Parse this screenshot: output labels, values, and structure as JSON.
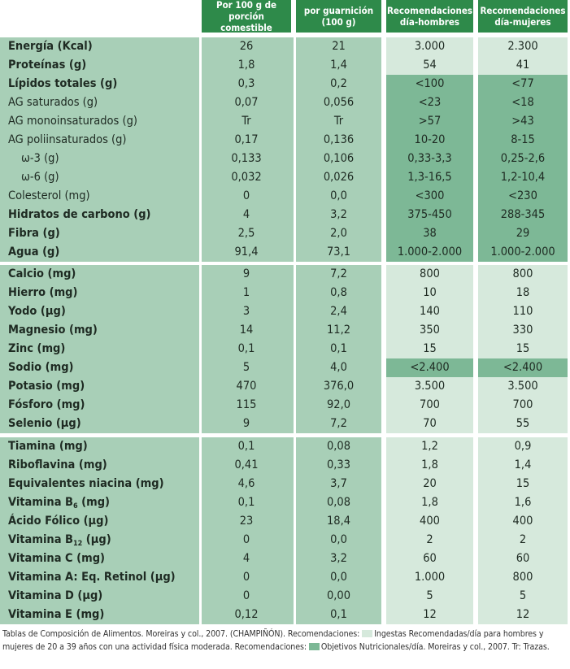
{
  "colors": {
    "header": "#2e8a4a",
    "col_main": "#a8cfb7",
    "col_light": "#d6e9dc",
    "col_dark": "#7db896",
    "divider": "#ffffff",
    "line": "#7aa88c"
  },
  "header": {
    "col1": "Por 100 g de porción comestible",
    "col2": "por guarnición (100 g)",
    "col3": "Recomendaciones día-hombres",
    "col4": "Recomendaciones día-mujeres"
  },
  "sections": [
    {
      "rows": [
        {
          "label": "Energía (Kcal)",
          "bold": true,
          "v": [
            "26",
            "21",
            "3.000",
            "2.300"
          ],
          "rec": "light"
        },
        {
          "label": "Proteínas (g)",
          "bold": true,
          "v": [
            "1,8",
            "1,4",
            "54",
            "41"
          ],
          "rec": "light"
        },
        {
          "label": "Lípidos totales (g)",
          "bold": true,
          "v": [
            "0,3",
            "0,2",
            "<100",
            "<77"
          ],
          "rec": "dark"
        },
        {
          "label": "AG saturados (g)",
          "bold": false,
          "v": [
            "0,07",
            "0,056",
            "<23",
            "<18"
          ],
          "rec": "dark"
        },
        {
          "label": "AG monoinsaturados (g)",
          "bold": false,
          "v": [
            "Tr",
            "Tr",
            ">57",
            ">43"
          ],
          "rec": "dark"
        },
        {
          "label": "AG poliinsaturados (g)",
          "bold": false,
          "v": [
            "0,17",
            "0,136",
            "10-20",
            "8-15"
          ],
          "rec": "dark"
        },
        {
          "label": "ω-3 (g)",
          "bold": false,
          "indent": true,
          "v": [
            "0,133",
            "0,106",
            "0,33-3,3",
            "0,25-2,6"
          ],
          "rec": "dark"
        },
        {
          "label": "ω-6 (g)",
          "bold": false,
          "indent": true,
          "v": [
            "0,032",
            "0,026",
            "1,3-16,5",
            "1,2-10,4"
          ],
          "rec": "dark"
        },
        {
          "label": "Colesterol (mg)",
          "bold": false,
          "v": [
            "0",
            "0,0",
            "<300",
            "<230"
          ],
          "rec": "dark"
        },
        {
          "label": "Hidratos de carbono (g)",
          "bold": true,
          "v": [
            "4",
            "3,2",
            "375-450",
            "288-345"
          ],
          "rec": "dark"
        },
        {
          "label": "Fibra (g)",
          "bold": true,
          "v": [
            "2,5",
            "2,0",
            "38",
            "29"
          ],
          "rec": "dark"
        },
        {
          "label": "Agua (g)",
          "bold": true,
          "v": [
            "91,4",
            "73,1",
            "1.000-2.000",
            "1.000-2.000"
          ],
          "rec": "dark"
        }
      ]
    },
    {
      "rows": [
        {
          "label": "Calcio (mg)",
          "bold": true,
          "v": [
            "9",
            "7,2",
            "800",
            "800"
          ],
          "rec": "light"
        },
        {
          "label": "Hierro (mg)",
          "bold": true,
          "v": [
            "1",
            "0,8",
            "10",
            "18"
          ],
          "rec": "light"
        },
        {
          "label": "Yodo (µg)",
          "bold": true,
          "v": [
            "3",
            "2,4",
            "140",
            "110"
          ],
          "rec": "light"
        },
        {
          "label": "Magnesio (mg)",
          "bold": true,
          "v": [
            "14",
            "11,2",
            "350",
            "330"
          ],
          "rec": "light"
        },
        {
          "label": "Zinc (mg)",
          "bold": true,
          "v": [
            "0,1",
            "0,1",
            "15",
            "15"
          ],
          "rec": "light"
        },
        {
          "label": "Sodio (mg)",
          "bold": true,
          "v": [
            "5",
            "4,0",
            "<2.400",
            "<2.400"
          ],
          "rec": "dark"
        },
        {
          "label": "Potasio (mg)",
          "bold": true,
          "v": [
            "470",
            "376,0",
            "3.500",
            "3.500"
          ],
          "rec": "light"
        },
        {
          "label": "Fósforo (mg)",
          "bold": true,
          "v": [
            "115",
            "92,0",
            "700",
            "700"
          ],
          "rec": "light"
        },
        {
          "label": "Selenio (µg)",
          "bold": true,
          "v": [
            "9",
            "7,2",
            "70",
            "55"
          ],
          "rec": "light"
        }
      ]
    },
    {
      "rows": [
        {
          "label": "Tiamina (mg)",
          "bold": true,
          "v": [
            "0,1",
            "0,08",
            "1,2",
            "0,9"
          ],
          "rec": "light"
        },
        {
          "label": "Riboflavina  (mg)",
          "bold": true,
          "v": [
            "0,41",
            "0,33",
            "1,8",
            "1,4"
          ],
          "rec": "light"
        },
        {
          "label": "Equivalentes niacina (mg)",
          "bold": true,
          "v": [
            "4,6",
            "3,7",
            "20",
            "15"
          ],
          "rec": "light"
        },
        {
          "label": "Vitamina B",
          "sub": "6",
          "after": " (mg)",
          "bold": true,
          "v": [
            "0,1",
            "0,08",
            "1,8",
            "1,6"
          ],
          "rec": "light"
        },
        {
          "label": "Ácido Fólico (µg)",
          "bold": true,
          "v": [
            "23",
            "18,4",
            "400",
            "400"
          ],
          "rec": "light"
        },
        {
          "label": "Vitamina B",
          "sub": "12",
          "after": " (µg)",
          "bold": true,
          "v": [
            "0",
            "0,0",
            "2",
            "2"
          ],
          "rec": "light"
        },
        {
          "label": "Vitamina C (mg)",
          "bold": true,
          "v": [
            "4",
            "3,2",
            "60",
            "60"
          ],
          "rec": "light"
        },
        {
          "label": "Vitamina A: Eq. Retinol (µg)",
          "bold": true,
          "v": [
            "0",
            "0,0",
            "1.000",
            "800"
          ],
          "rec": "light"
        },
        {
          "label": "Vitamina D (µg)",
          "bold": true,
          "v": [
            "0",
            "0,00",
            "5",
            "5"
          ],
          "rec": "light"
        },
        {
          "label": "Vitamina E (mg)",
          "bold": true,
          "v": [
            "0,12",
            "0,1",
            "12",
            "12"
          ],
          "rec": "light"
        }
      ]
    }
  ],
  "footnote": {
    "part1": "Tablas de Composición de Alimentos. Moreiras y col., 2007. (CHAMPIÑÓN).  Recomendaciones: ",
    "legend1": "Ingestas Recomendadas/día para hombres y mujeres de 20 a 39 años con una actividad física moderada.",
    "part2": "  Recomendaciones: ",
    "legend2": "Objetivos Nutricionales/día. Moreiras y col., 2007.",
    "part3": "  Tr: Trazas."
  }
}
